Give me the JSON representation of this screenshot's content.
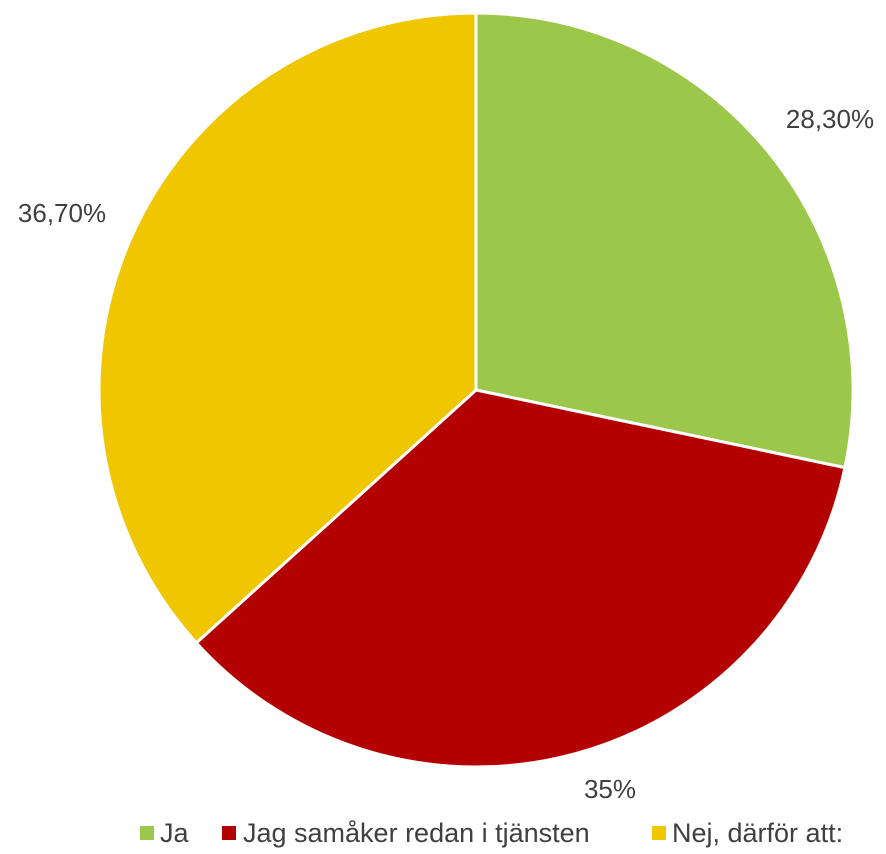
{
  "chart_data": {
    "type": "pie",
    "title": "",
    "slices": [
      {
        "name": "Ja",
        "value": 28.3,
        "label": "28,30%",
        "color": "#9BC74B"
      },
      {
        "name": "Jag samåker redan i tjänsten",
        "value": 35,
        "label": "35%",
        "color": "#B30000"
      },
      {
        "name": "Nej, därför att:",
        "value": 36.7,
        "label": "36,70%",
        "color": "#F0C600"
      }
    ],
    "start_angle": "12 o'clock",
    "direction": "clockwise",
    "legend_position": "bottom"
  }
}
